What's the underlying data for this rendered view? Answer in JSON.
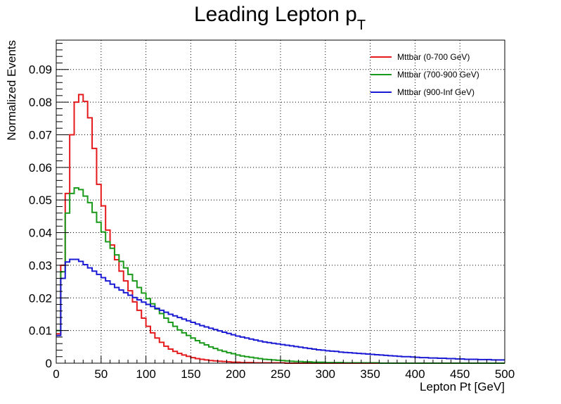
{
  "chart_data": {
    "type": "line",
    "title": "Leading Lepton p",
    "title_subscript": "T",
    "xlabel": "Lepton Pt [GeV]",
    "ylabel": "Normalized Events",
    "xlim": [
      0,
      500
    ],
    "ylim": [
      0,
      0.099
    ],
    "x_ticks": [
      0,
      50,
      100,
      150,
      200,
      250,
      300,
      350,
      400,
      450,
      500
    ],
    "x_tick_labels": [
      "0",
      "50",
      "100",
      "150",
      "200",
      "250",
      "300",
      "350",
      "400",
      "450",
      "500"
    ],
    "y_ticks": [
      0,
      0.01,
      0.02,
      0.03,
      0.04,
      0.05,
      0.06,
      0.07,
      0.08,
      0.09
    ],
    "y_tick_labels": [
      "0",
      "0.01",
      "0.02",
      "0.03",
      "0.04",
      "0.05",
      "0.06",
      "0.07",
      "0.08",
      "0.09"
    ],
    "grid": true,
    "legend_position": "top-right",
    "bin_width": 5,
    "series": [
      {
        "name": "Mttbar (0-700 GeV)",
        "color": "#e41a1c",
        "values": [
          0.009,
          0.03,
          0.052,
          0.07,
          0.08,
          0.0823,
          0.0802,
          0.0752,
          0.0658,
          0.0548,
          0.0482,
          0.0408,
          0.0362,
          0.0317,
          0.0282,
          0.0252,
          0.0222,
          0.0188,
          0.0162,
          0.0138,
          0.0113,
          0.0093,
          0.0077,
          0.0064,
          0.0052,
          0.0043,
          0.0036,
          0.003,
          0.0025,
          0.0021,
          0.0017,
          0.0014,
          0.0012,
          0.001,
          0.0008,
          0.0007,
          0.0006,
          0.0005,
          0.0004,
          0.0003,
          0.0003,
          0.0002,
          0.0002,
          0.0002,
          0.0001,
          0.0001,
          0.0001,
          0.0001,
          0.0001,
          0.0001,
          0.0001,
          0.0,
          0.0,
          0.0,
          0.0,
          0.0,
          0.0,
          0.0,
          0.0,
          0.0,
          0.0,
          0.0,
          0.0,
          0.0,
          0.0,
          0.0,
          0.0,
          0.0,
          0.0,
          0.0,
          0.0,
          0.0,
          0.0,
          0.0,
          0.0,
          0.0,
          0.0,
          0.0,
          0.0,
          0.0,
          0.0,
          0.0,
          0.0,
          0.0,
          0.0,
          0.0,
          0.0,
          0.0,
          0.0,
          0.0,
          0.0,
          0.0,
          0.0,
          0.0,
          0.0,
          0.0,
          0.0,
          0.0,
          0.0,
          0.0
        ]
      },
      {
        "name": "Mttbar (700-900 GeV)",
        "color": "#1a9a1a",
        "values": [
          0.01,
          0.028,
          0.046,
          0.052,
          0.0537,
          0.0532,
          0.0512,
          0.0492,
          0.0462,
          0.0432,
          0.0402,
          0.0372,
          0.0352,
          0.0332,
          0.0312,
          0.0292,
          0.0272,
          0.0252,
          0.0232,
          0.0215,
          0.0198,
          0.0182,
          0.0166,
          0.0152,
          0.0138,
          0.0125,
          0.0113,
          0.0102,
          0.0093,
          0.0085,
          0.0077,
          0.0069,
          0.0062,
          0.0056,
          0.005,
          0.0045,
          0.004,
          0.0036,
          0.0032,
          0.0029,
          0.0025,
          0.0022,
          0.002,
          0.0018,
          0.0016,
          0.0014,
          0.0012,
          0.0011,
          0.001,
          0.0009,
          0.0008,
          0.0007,
          0.0006,
          0.0005,
          0.0005,
          0.0004,
          0.0004,
          0.0003,
          0.0003,
          0.0003,
          0.0002,
          0.0002,
          0.0002,
          0.0002,
          0.0001,
          0.0001,
          0.0001,
          0.0001,
          0.0001,
          0.0001,
          0.0001,
          0.0001,
          0.0,
          0.0,
          0.0,
          0.0,
          0.0,
          0.0,
          0.0,
          0.0,
          0.0,
          0.0,
          0.0,
          0.0,
          0.0,
          0.0,
          0.0,
          0.0,
          0.0,
          0.0,
          0.0,
          0.0,
          0.0,
          0.0,
          0.0,
          0.0,
          0.0,
          0.0,
          0.0,
          0.0
        ]
      },
      {
        "name": "Mttbar (900-Inf GeV)",
        "color": "#1a1ad4",
        "values": [
          0.0085,
          0.026,
          0.031,
          0.0318,
          0.0318,
          0.0312,
          0.0302,
          0.0292,
          0.0282,
          0.0272,
          0.0262,
          0.0252,
          0.0242,
          0.0232,
          0.0224,
          0.0216,
          0.0208,
          0.0201,
          0.0194,
          0.0187,
          0.018,
          0.0174,
          0.0168,
          0.0162,
          0.0156,
          0.015,
          0.0145,
          0.014,
          0.0135,
          0.013,
          0.0125,
          0.012,
          0.0115,
          0.0111,
          0.0107,
          0.0103,
          0.0099,
          0.0095,
          0.0091,
          0.0087,
          0.0083,
          0.008,
          0.0077,
          0.0074,
          0.0071,
          0.0068,
          0.0065,
          0.0063,
          0.0061,
          0.0059,
          0.0057,
          0.0055,
          0.0053,
          0.0051,
          0.0049,
          0.0047,
          0.0045,
          0.0043,
          0.0041,
          0.004,
          0.0038,
          0.0037,
          0.0036,
          0.0034,
          0.0033,
          0.0032,
          0.0031,
          0.003,
          0.0029,
          0.0028,
          0.0027,
          0.0026,
          0.0025,
          0.0024,
          0.0023,
          0.0022,
          0.0021,
          0.002,
          0.002,
          0.0019,
          0.0018,
          0.0017,
          0.0017,
          0.0016,
          0.0016,
          0.0015,
          0.0015,
          0.0014,
          0.0014,
          0.0013,
          0.0013,
          0.0012,
          0.0012,
          0.0012,
          0.0011,
          0.0011,
          0.0011,
          0.001,
          0.001,
          0.001
        ]
      }
    ]
  }
}
